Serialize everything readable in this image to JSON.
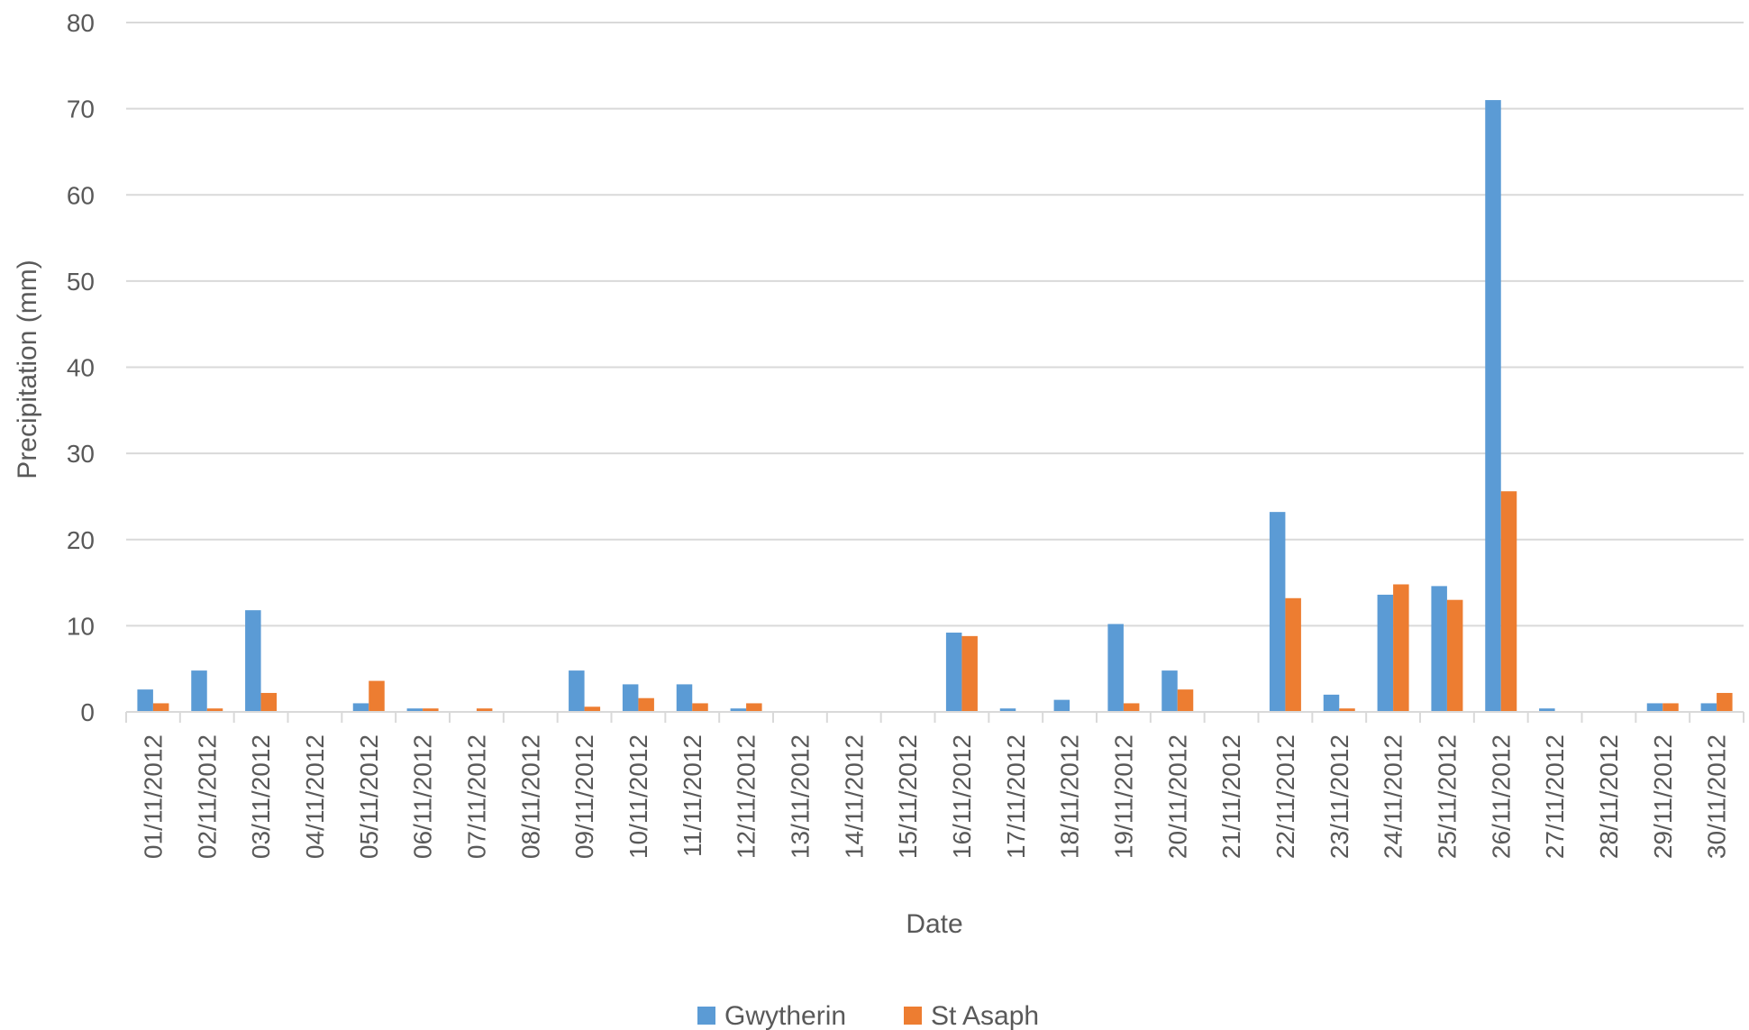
{
  "chart_data": {
    "type": "bar",
    "title": "",
    "xlabel": "Date",
    "ylabel": "Precipitation (mm)",
    "ylim": [
      0,
      80
    ],
    "yticks": [
      0,
      10,
      20,
      30,
      40,
      50,
      60,
      70,
      80
    ],
    "grid": true,
    "legend_position": "bottom",
    "categories": [
      "01/11/2012",
      "02/11/2012",
      "03/11/2012",
      "04/11/2012",
      "05/11/2012",
      "06/11/2012",
      "07/11/2012",
      "08/11/2012",
      "09/11/2012",
      "10/11/2012",
      "11/11/2012",
      "12/11/2012",
      "13/11/2012",
      "14/11/2012",
      "15/11/2012",
      "16/11/2012",
      "17/11/2012",
      "18/11/2012",
      "19/11/2012",
      "20/11/2012",
      "21/11/2012",
      "22/11/2012",
      "23/11/2012",
      "24/11/2012",
      "25/11/2012",
      "26/11/2012",
      "27/11/2012",
      "28/11/2012",
      "29/11/2012",
      "30/11/2012"
    ],
    "series": [
      {
        "name": "Gwytherin",
        "color": "#5b9bd5",
        "values": [
          2.6,
          4.8,
          11.8,
          0,
          1.0,
          0.4,
          0,
          0,
          4.8,
          3.2,
          3.2,
          0.4,
          0,
          0,
          0,
          9.2,
          0.4,
          1.4,
          10.2,
          4.8,
          0,
          23.2,
          2.0,
          13.6,
          14.6,
          71.0,
          0.4,
          0,
          1.0,
          1.0
        ]
      },
      {
        "name": "St Asaph",
        "color": "#ed7d31",
        "values": [
          1.0,
          0.4,
          2.2,
          0,
          3.6,
          0.4,
          0.4,
          0,
          0.6,
          1.6,
          1.0,
          1.0,
          0,
          0,
          0,
          8.8,
          0,
          0,
          1.0,
          2.6,
          0,
          13.2,
          0.4,
          14.8,
          13.0,
          25.6,
          0,
          0,
          1.0,
          2.2
        ]
      }
    ]
  }
}
